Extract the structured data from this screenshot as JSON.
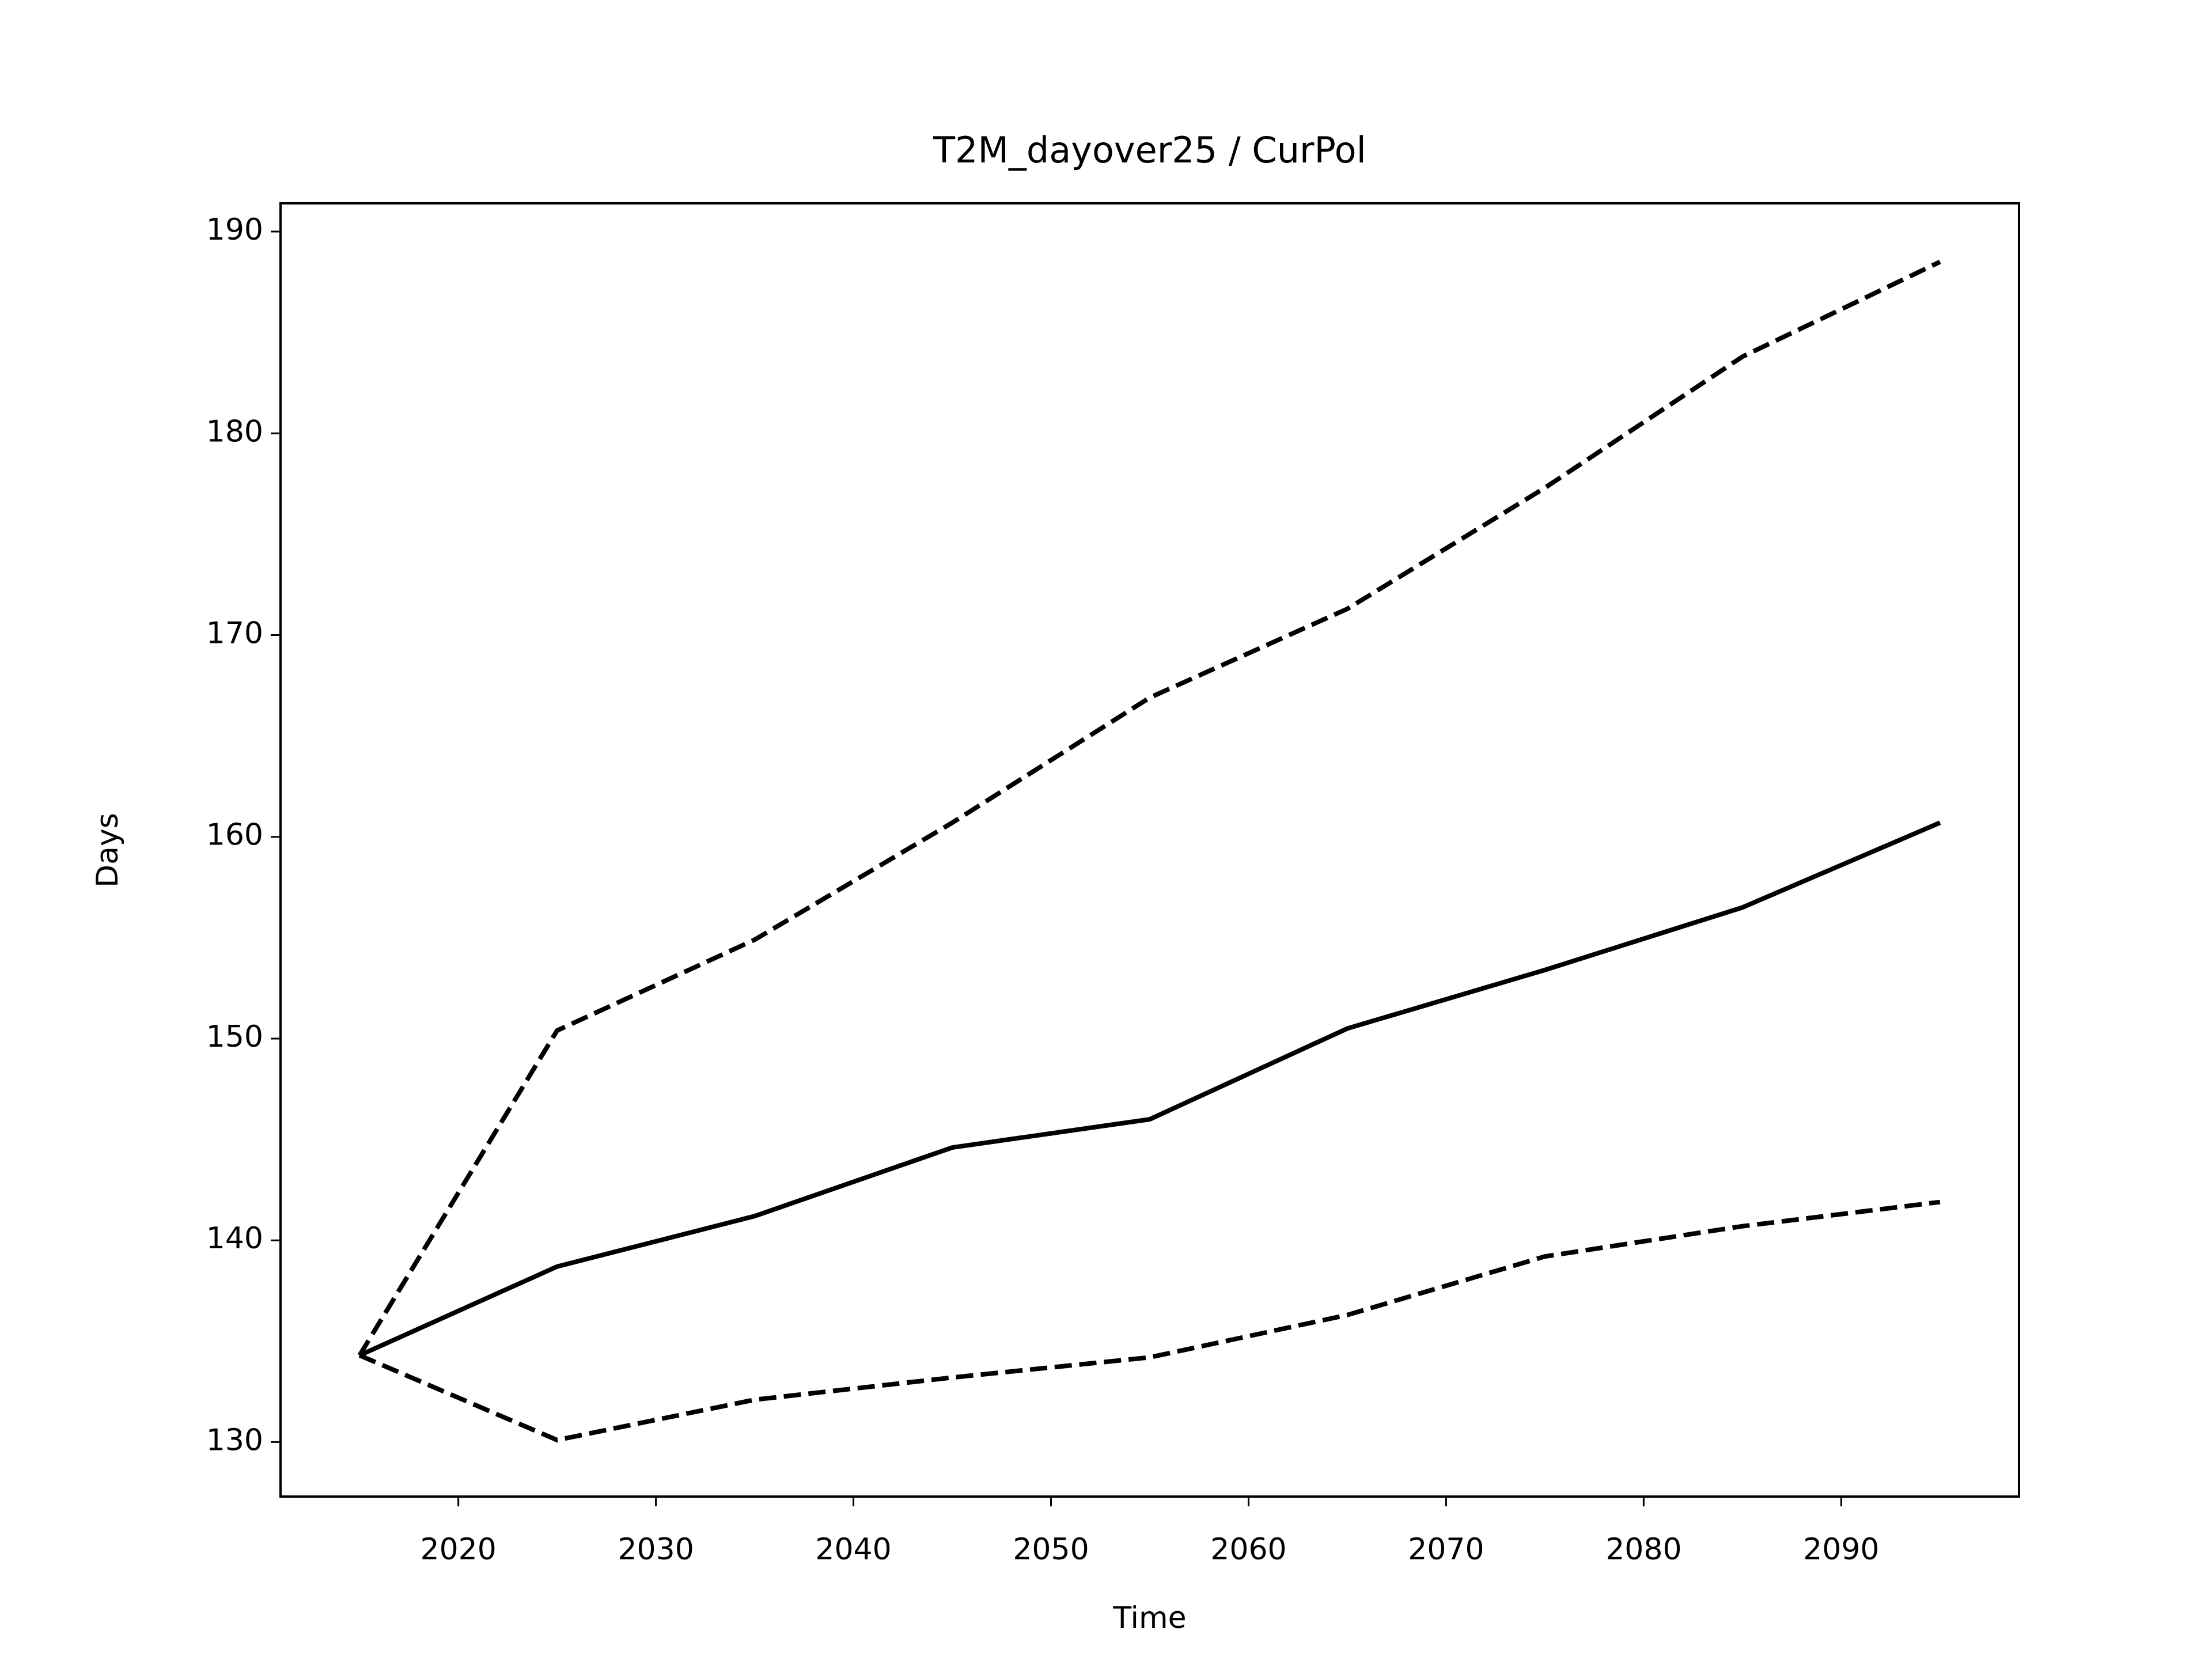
{
  "chart_data": {
    "type": "line",
    "title": "T2M_dayover25 / CurPol",
    "xlabel": "Time",
    "ylabel": "Days",
    "x": [
      2015,
      2025,
      2035,
      2045,
      2055,
      2065,
      2075,
      2085,
      2095
    ],
    "series": [
      {
        "color": "#000000",
        "style": "solid",
        "values": [
          134.3,
          138.7,
          141.2,
          144.6,
          146.0,
          150.5,
          153.4,
          156.5,
          160.7
        ]
      },
      {
        "color": "#000000",
        "style": "dashed",
        "values": [
          134.3,
          150.4,
          154.9,
          160.7,
          166.9,
          171.3,
          177.3,
          183.8,
          188.5
        ]
      },
      {
        "color": "#000000",
        "style": "dashed",
        "values": [
          134.3,
          130.1,
          132.1,
          133.2,
          134.2,
          136.3,
          139.2,
          140.7,
          141.9
        ]
      }
    ],
    "xlim": [
      2011,
      2099
    ],
    "xticks": [
      2020,
      2030,
      2040,
      2050,
      2060,
      2070,
      2080,
      2090
    ],
    "ylim": [
      127.3,
      191.4
    ],
    "yticks": [
      130,
      140,
      150,
      160,
      170,
      180,
      190
    ],
    "grid": false
  }
}
